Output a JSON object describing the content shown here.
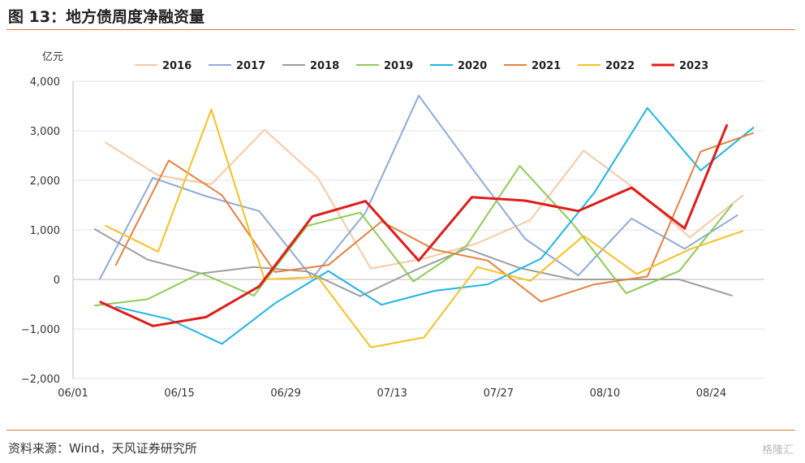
{
  "header": {
    "title": "图 13：地方债周度净融资量"
  },
  "footer": {
    "source": "资料来源：Wind，天风证券研究所",
    "watermark": "格隆汇"
  },
  "chart_data": {
    "type": "line",
    "ylabel": "亿元",
    "ylim": [
      -2000,
      4000
    ],
    "yticks": [
      -2000,
      -1000,
      0,
      1000,
      2000,
      3000,
      4000
    ],
    "ytick_labels": [
      "−2,000",
      "−1,000",
      "0",
      "1,000",
      "2,000",
      "3,000",
      "4,000"
    ],
    "x_tick_labels": [
      "06/01",
      "06/15",
      "06/29",
      "07/13",
      "07/27",
      "08/10",
      "08/24"
    ],
    "x_domain": [
      0,
      13
    ],
    "series": [
      {
        "name": "2016",
        "color": "#f6c9a6",
        "width": 2,
        "points": [
          [
            0.6,
            2770
          ],
          [
            1.6,
            2100
          ],
          [
            2.6,
            1920
          ],
          [
            3.6,
            3020
          ],
          [
            4.6,
            2050
          ],
          [
            5.6,
            220
          ],
          [
            6.6,
            420
          ],
          [
            7.6,
            730
          ],
          [
            8.6,
            1200
          ],
          [
            9.6,
            2600
          ],
          [
            10.6,
            1800
          ],
          [
            11.6,
            850
          ],
          [
            12.6,
            1700
          ]
        ]
      },
      {
        "name": "2017",
        "color": "#8eaad8",
        "width": 2,
        "points": [
          [
            0.5,
            0
          ],
          [
            1.5,
            2050
          ],
          [
            2.5,
            1680
          ],
          [
            3.5,
            1380
          ],
          [
            4.5,
            30
          ],
          [
            5.5,
            1350
          ],
          [
            6.5,
            3710
          ],
          [
            7.5,
            2250
          ],
          [
            8.5,
            820
          ],
          [
            9.5,
            80
          ],
          [
            10.5,
            1230
          ],
          [
            11.5,
            620
          ],
          [
            12.5,
            1300
          ]
        ]
      },
      {
        "name": "2018",
        "color": "#9e9e9e",
        "width": 2,
        "points": [
          [
            0.4,
            1020
          ],
          [
            1.4,
            400
          ],
          [
            2.4,
            120
          ],
          [
            3.4,
            250
          ],
          [
            4.4,
            160
          ],
          [
            5.4,
            -340
          ],
          [
            6.4,
            170
          ],
          [
            7.4,
            620
          ],
          [
            8.4,
            230
          ],
          [
            9.4,
            0
          ],
          [
            10.4,
            0
          ],
          [
            11.4,
            0
          ],
          [
            12.4,
            -330
          ]
        ]
      },
      {
        "name": "2019",
        "color": "#8dcb53",
        "width": 2,
        "points": [
          [
            0.4,
            -530
          ],
          [
            1.4,
            -400
          ],
          [
            2.4,
            130
          ],
          [
            3.4,
            -330
          ],
          [
            4.4,
            1080
          ],
          [
            5.4,
            1350
          ],
          [
            6.4,
            -40
          ],
          [
            7.4,
            680
          ],
          [
            8.4,
            2290
          ],
          [
            9.4,
            1120
          ],
          [
            10.4,
            -280
          ],
          [
            11.4,
            170
          ],
          [
            12.4,
            1520
          ]
        ]
      },
      {
        "name": "2020",
        "color": "#1eb5e5",
        "width": 2,
        "points": [
          [
            0.8,
            -550
          ],
          [
            1.8,
            -800
          ],
          [
            2.8,
            -1300
          ],
          [
            3.8,
            -480
          ],
          [
            4.8,
            170
          ],
          [
            5.8,
            -510
          ],
          [
            6.8,
            -230
          ],
          [
            7.8,
            -100
          ],
          [
            8.8,
            420
          ],
          [
            9.8,
            1750
          ],
          [
            10.8,
            3460
          ],
          [
            11.8,
            2200
          ],
          [
            12.8,
            3070
          ]
        ]
      },
      {
        "name": "2021",
        "color": "#e5813d",
        "width": 2,
        "points": [
          [
            0.8,
            280
          ],
          [
            1.8,
            2400
          ],
          [
            2.8,
            1700
          ],
          [
            3.8,
            150
          ],
          [
            4.8,
            290
          ],
          [
            5.8,
            1170
          ],
          [
            6.8,
            600
          ],
          [
            7.8,
            380
          ],
          [
            8.8,
            -450
          ],
          [
            9.8,
            -100
          ],
          [
            10.8,
            60
          ],
          [
            11.8,
            2580
          ],
          [
            12.8,
            2960
          ]
        ]
      },
      {
        "name": "2022",
        "color": "#f6c11f",
        "width": 2,
        "points": [
          [
            0.6,
            1090
          ],
          [
            1.6,
            560
          ],
          [
            2.6,
            3430
          ],
          [
            3.6,
            0
          ],
          [
            4.6,
            50
          ],
          [
            5.6,
            -1370
          ],
          [
            6.6,
            -1170
          ],
          [
            7.6,
            250
          ],
          [
            8.6,
            -30
          ],
          [
            9.6,
            880
          ],
          [
            10.6,
            110
          ],
          [
            11.6,
            610
          ],
          [
            12.6,
            980
          ]
        ]
      },
      {
        "name": "2023",
        "color": "#e11b1b",
        "width": 3,
        "points": [
          [
            0.5,
            -450
          ],
          [
            1.5,
            -940
          ],
          [
            2.5,
            -760
          ],
          [
            3.5,
            -140
          ],
          [
            4.5,
            1270
          ],
          [
            5.5,
            1580
          ],
          [
            6.5,
            380
          ],
          [
            7.5,
            1660
          ],
          [
            8.5,
            1590
          ],
          [
            9.5,
            1380
          ],
          [
            10.5,
            1850
          ],
          [
            11.5,
            1030
          ],
          [
            12.3,
            3130
          ]
        ]
      }
    ]
  }
}
